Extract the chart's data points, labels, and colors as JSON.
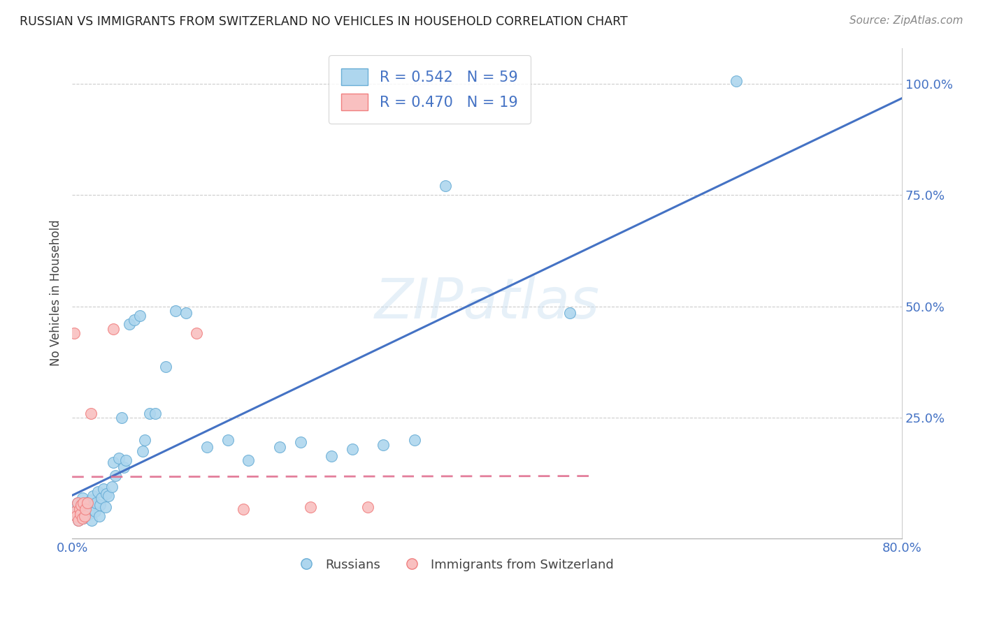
{
  "title": "RUSSIAN VS IMMIGRANTS FROM SWITZERLAND NO VEHICLES IN HOUSEHOLD CORRELATION CHART",
  "source": "Source: ZipAtlas.com",
  "ylabel": "No Vehicles in Household",
  "xlim": [
    0.0,
    0.8
  ],
  "ylim": [
    -0.02,
    1.08
  ],
  "blue_R": 0.542,
  "blue_N": 59,
  "pink_R": 0.47,
  "pink_N": 19,
  "blue_color": "#AED6EE",
  "pink_color": "#F9C0C0",
  "blue_edge_color": "#6AAED6",
  "pink_edge_color": "#F08080",
  "blue_line_color": "#4472C4",
  "pink_line_color": "#E07090",
  "watermark": "ZIPatlas",
  "legend_labels": [
    "Russians",
    "Immigrants from Switzerland"
  ],
  "blue_scatter_x": [
    0.002,
    0.003,
    0.004,
    0.005,
    0.006,
    0.007,
    0.008,
    0.009,
    0.01,
    0.011,
    0.012,
    0.013,
    0.014,
    0.015,
    0.016,
    0.017,
    0.018,
    0.019,
    0.02,
    0.021,
    0.022,
    0.023,
    0.025,
    0.026,
    0.027,
    0.028,
    0.03,
    0.032,
    0.033,
    0.035,
    0.038,
    0.04,
    0.042,
    0.045,
    0.048,
    0.05,
    0.052,
    0.055,
    0.06,
    0.065,
    0.068,
    0.07,
    0.075,
    0.08,
    0.09,
    0.1,
    0.11,
    0.13,
    0.15,
    0.17,
    0.2,
    0.22,
    0.25,
    0.27,
    0.3,
    0.33,
    0.36,
    0.48,
    0.64
  ],
  "blue_scatter_y": [
    0.05,
    0.04,
    0.03,
    0.06,
    0.02,
    0.045,
    0.035,
    0.055,
    0.07,
    0.025,
    0.04,
    0.03,
    0.06,
    0.05,
    0.035,
    0.045,
    0.065,
    0.02,
    0.075,
    0.055,
    0.04,
    0.06,
    0.085,
    0.03,
    0.055,
    0.07,
    0.09,
    0.05,
    0.08,
    0.075,
    0.095,
    0.15,
    0.12,
    0.16,
    0.25,
    0.14,
    0.155,
    0.46,
    0.47,
    0.48,
    0.175,
    0.2,
    0.26,
    0.26,
    0.365,
    0.49,
    0.485,
    0.185,
    0.2,
    0.155,
    0.185,
    0.195,
    0.165,
    0.18,
    0.19,
    0.2,
    0.77,
    0.485,
    1.005
  ],
  "pink_scatter_x": [
    0.002,
    0.003,
    0.004,
    0.005,
    0.006,
    0.007,
    0.008,
    0.009,
    0.01,
    0.011,
    0.012,
    0.013,
    0.015,
    0.018,
    0.04,
    0.12,
    0.165,
    0.23,
    0.285
  ],
  "pink_scatter_y": [
    0.44,
    0.04,
    0.03,
    0.06,
    0.02,
    0.045,
    0.035,
    0.055,
    0.025,
    0.06,
    0.03,
    0.045,
    0.06,
    0.26,
    0.45,
    0.44,
    0.045,
    0.05,
    0.05
  ]
}
